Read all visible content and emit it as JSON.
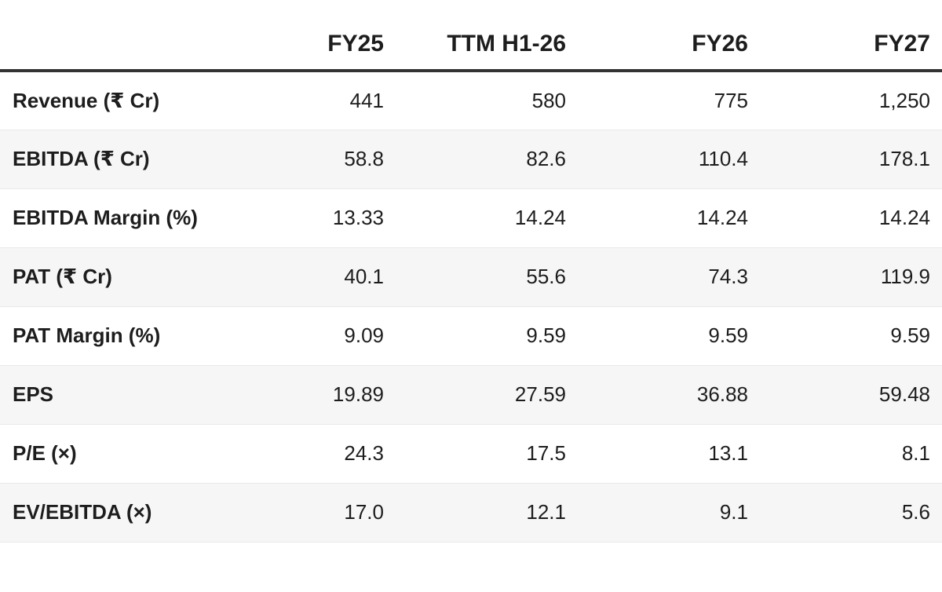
{
  "colors": {
    "text": "#1d1d1d",
    "header_border": "#333333",
    "row_divider": "#e9e9e9",
    "stripe": "#f6f6f6"
  },
  "chart_data": {
    "type": "table",
    "title": "Financial projections table",
    "columns": [
      "",
      "FY25",
      "TTM H1-26",
      "FY26",
      "FY27"
    ],
    "rows": [
      {
        "label": "Revenue (₹ Cr)",
        "values": [
          "441",
          "580",
          "775",
          "1,250"
        ]
      },
      {
        "label": "EBITDA (₹ Cr)",
        "values": [
          "58.8",
          "82.6",
          "110.4",
          "178.1"
        ]
      },
      {
        "label": "EBITDA Margin (%)",
        "values": [
          "13.33",
          "14.24",
          "14.24",
          "14.24"
        ]
      },
      {
        "label": "PAT (₹ Cr)",
        "values": [
          "40.1",
          "55.6",
          "74.3",
          "119.9"
        ]
      },
      {
        "label": "PAT Margin (%)",
        "values": [
          "9.09",
          "9.59",
          "9.59",
          "9.59"
        ]
      },
      {
        "label": "EPS",
        "values": [
          "19.89",
          "27.59",
          "36.88",
          "59.48"
        ]
      },
      {
        "label": "P/E (×)",
        "values": [
          "24.3",
          "17.5",
          "13.1",
          "8.1"
        ]
      },
      {
        "label": "EV/EBITDA (×)",
        "values": [
          "17.0",
          "12.1",
          "9.1",
          "5.6"
        ]
      }
    ],
    "layout": {
      "striped": true,
      "numeric_alignment": "right",
      "header_rule": "thick-dark",
      "grid": "horizontal-only"
    }
  }
}
